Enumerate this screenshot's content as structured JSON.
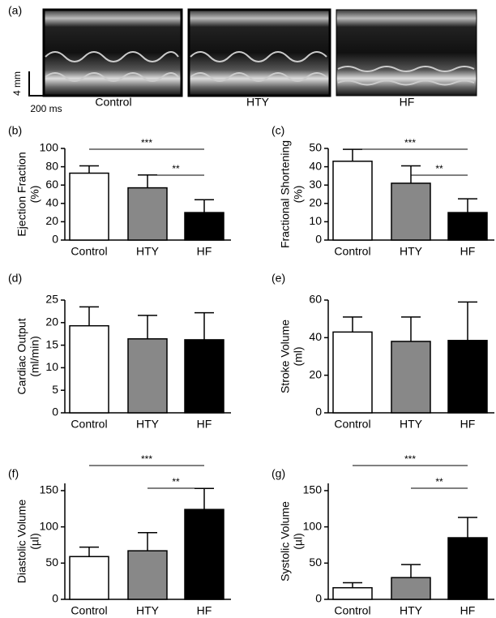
{
  "panel_a": {
    "label": "(a)",
    "images": [
      "Control",
      "HTY",
      "HF"
    ],
    "scale_y": "4 mm",
    "scale_x": "200 ms"
  },
  "chart_data": [
    {
      "type": "bar",
      "panel": "(b)",
      "ylabel": [
        "Ejection Fraction",
        "(%)"
      ],
      "categories": [
        "Control",
        "HTY",
        "HF"
      ],
      "values": [
        73,
        57,
        30
      ],
      "errors": [
        8,
        14,
        14
      ],
      "colors": [
        "#ffffff",
        "#888888",
        "#000000"
      ],
      "ylim": [
        0,
        100
      ],
      "yticks": [
        0,
        20,
        40,
        60,
        80,
        100
      ],
      "significance": [
        {
          "from": "Control",
          "to": "HF",
          "label": "***"
        },
        {
          "from": "HTY",
          "to": "HF",
          "label": "**"
        }
      ]
    },
    {
      "type": "bar",
      "panel": "(c)",
      "ylabel": [
        "Fractional Shortening",
        "(%)"
      ],
      "categories": [
        "Control",
        "HTY",
        "HF"
      ],
      "values": [
        43,
        31,
        15
      ],
      "errors": [
        6.5,
        9.5,
        7.5
      ],
      "colors": [
        "#ffffff",
        "#888888",
        "#000000"
      ],
      "ylim": [
        0,
        50
      ],
      "yticks": [
        0,
        10,
        20,
        30,
        40,
        50
      ],
      "significance": [
        {
          "from": "Control",
          "to": "HF",
          "label": "***"
        },
        {
          "from": "HTY",
          "to": "HF",
          "label": "**"
        }
      ]
    },
    {
      "type": "bar",
      "panel": "(d)",
      "ylabel": [
        "Cardiac Output",
        "(ml/min)"
      ],
      "categories": [
        "Control",
        "HTY",
        "HF"
      ],
      "values": [
        19.3,
        16.4,
        16.2
      ],
      "errors": [
        4.2,
        5.2,
        6
      ],
      "colors": [
        "#ffffff",
        "#888888",
        "#000000"
      ],
      "ylim": [
        0,
        25
      ],
      "yticks": [
        0,
        5,
        10,
        15,
        20,
        25
      ],
      "significance": []
    },
    {
      "type": "bar",
      "panel": "(e)",
      "ylabel": [
        "Stroke Volume",
        "(ml)"
      ],
      "categories": [
        "Control",
        "HTY",
        "HF"
      ],
      "values": [
        43,
        38,
        38.5
      ],
      "errors": [
        8,
        13,
        20.5
      ],
      "colors": [
        "#ffffff",
        "#888888",
        "#000000"
      ],
      "ylim": [
        0,
        60
      ],
      "yticks": [
        0,
        20,
        40,
        60
      ],
      "significance": []
    },
    {
      "type": "bar",
      "panel": "(f)",
      "ylabel": [
        "Diastolic Volume",
        "(µl)"
      ],
      "categories": [
        "Control",
        "HTY",
        "HF"
      ],
      "values": [
        59,
        67,
        124
      ],
      "errors": [
        13,
        25,
        29
      ],
      "colors": [
        "#ffffff",
        "#888888",
        "#000000"
      ],
      "ylim": [
        0,
        160
      ],
      "yticks": [
        0,
        50,
        100,
        150
      ],
      "significance": [
        {
          "from": "Control",
          "to": "HF",
          "label": "***"
        },
        {
          "from": "HTY",
          "to": "HF",
          "label": "**"
        }
      ]
    },
    {
      "type": "bar",
      "panel": "(g)",
      "ylabel": [
        "Systolic Volume",
        "(µl)"
      ],
      "categories": [
        "Control",
        "HTY",
        "HF"
      ],
      "values": [
        16,
        30,
        85
      ],
      "errors": [
        7,
        18,
        28
      ],
      "colors": [
        "#ffffff",
        "#888888",
        "#000000"
      ],
      "ylim": [
        0,
        160
      ],
      "yticks": [
        0,
        50,
        100,
        150
      ],
      "significance": [
        {
          "from": "Control",
          "to": "HF",
          "label": "***"
        },
        {
          "from": "HTY",
          "to": "HF",
          "label": "**"
        }
      ]
    }
  ]
}
